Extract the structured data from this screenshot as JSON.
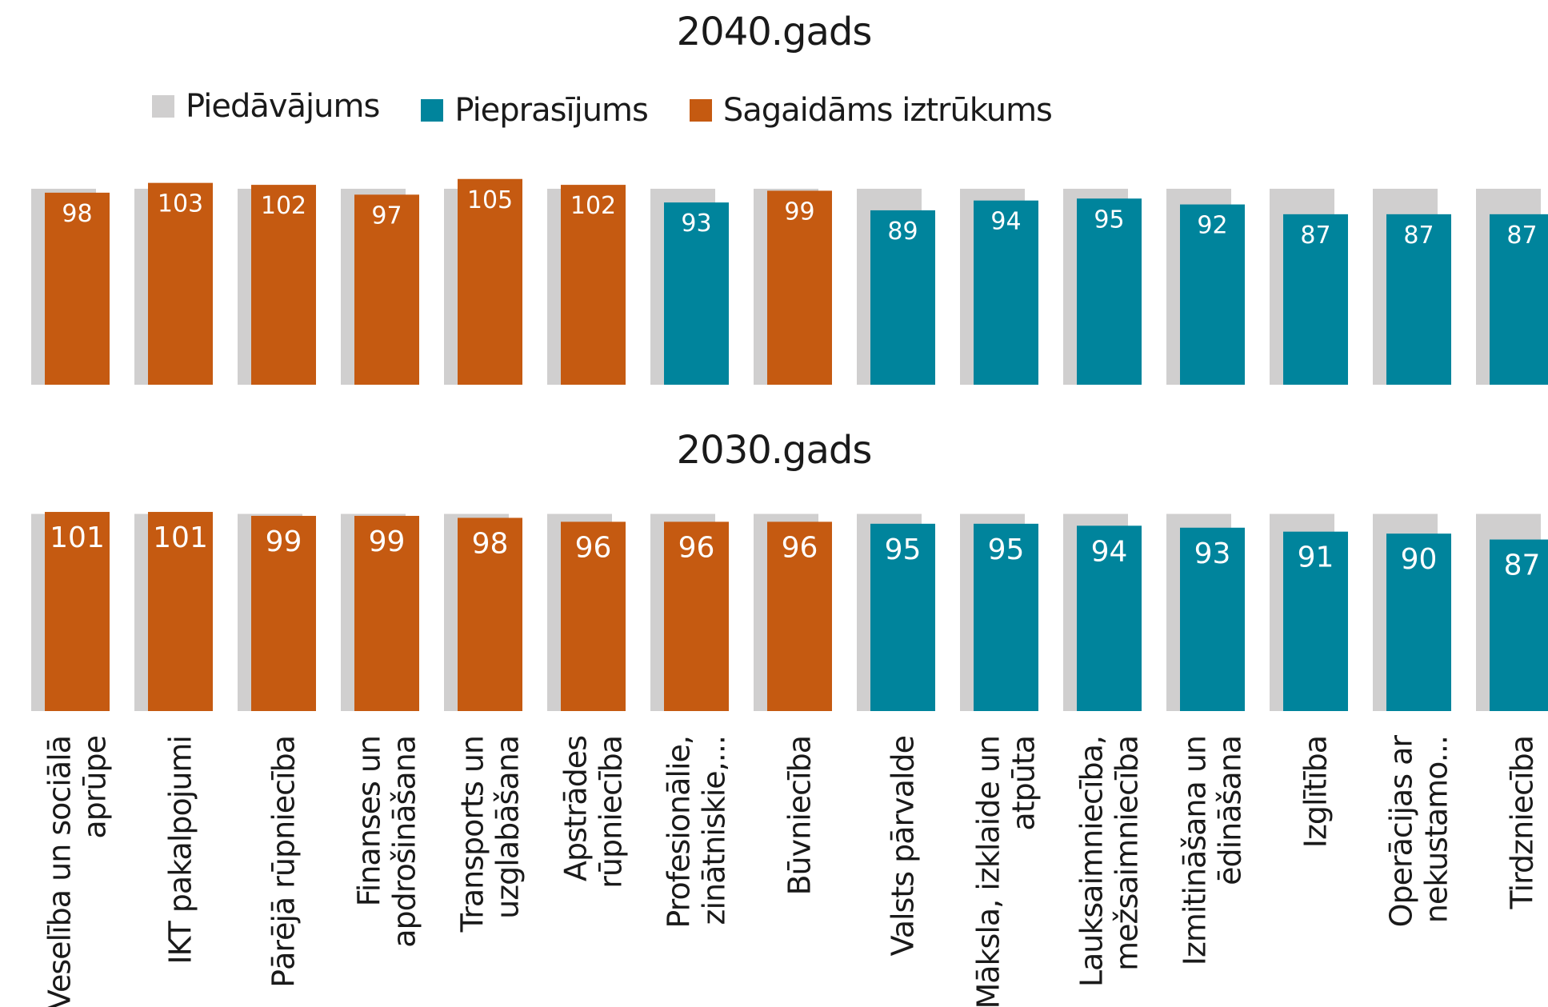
{
  "legend": {
    "supply": "Piedāvājums",
    "demand": "Pieprasījums",
    "shortage": "Sagaidāms iztrūkums"
  },
  "colors": {
    "supply": "#d0cfcf",
    "demand": "#00849c",
    "shortage": "#c55a11"
  },
  "chart_data": [
    {
      "type": "bar",
      "title": "2040.gads",
      "series": [
        {
          "name": "Piedāvājums",
          "values": [
            100,
            100,
            100,
            100,
            100,
            100,
            100,
            100,
            100,
            100,
            100,
            100,
            100,
            100,
            100
          ]
        },
        {
          "name": "Pieprasījums",
          "values": [
            98,
            103,
            102,
            97,
            105,
            102,
            93,
            99,
            89,
            94,
            95,
            92,
            87,
            87,
            87
          ]
        }
      ],
      "status": [
        "shortage",
        "shortage",
        "shortage",
        "shortage",
        "shortage",
        "shortage",
        "demand",
        "shortage",
        "demand",
        "demand",
        "demand",
        "demand",
        "demand",
        "demand",
        "demand"
      ],
      "ylim": [
        0,
        107
      ]
    },
    {
      "type": "bar",
      "title": "2030.gads",
      "categories": [
        [
          "Veselība un sociālā",
          "aprūpe"
        ],
        [
          "IKT pakalpojumi"
        ],
        [
          "Pārējā rūpniecība"
        ],
        [
          "Finanses un",
          "apdrošināšana"
        ],
        [
          "Transports un",
          "uzglabāšana"
        ],
        [
          "Apstrādes",
          "rūpniecība"
        ],
        [
          "Profesionālie,",
          "zinātniskie,..."
        ],
        [
          "Būvniecība"
        ],
        [
          "Valsts pārvalde"
        ],
        [
          "Māksla, izklaide un",
          "atpūta"
        ],
        [
          "Lauksaimniecība,",
          "mežsaimniecība"
        ],
        [
          "Izmitināšana un",
          "ēdināšana"
        ],
        [
          "Izglītība"
        ],
        [
          "Operācijas ar",
          "nekustamo..."
        ],
        [
          "Tirdzniecība"
        ]
      ],
      "series": [
        {
          "name": "Piedāvājums",
          "values": [
            100,
            100,
            100,
            100,
            100,
            100,
            100,
            100,
            100,
            100,
            100,
            100,
            100,
            100,
            100
          ]
        },
        {
          "name": "Pieprasījums",
          "values": [
            101,
            101,
            99,
            99,
            98,
            96,
            96,
            96,
            95,
            95,
            94,
            93,
            91,
            90,
            87
          ]
        }
      ],
      "status": [
        "shortage",
        "shortage",
        "shortage",
        "shortage",
        "shortage",
        "shortage",
        "shortage",
        "shortage",
        "demand",
        "demand",
        "demand",
        "demand",
        "demand",
        "demand",
        "demand"
      ],
      "ylim": [
        0,
        102
      ]
    }
  ]
}
